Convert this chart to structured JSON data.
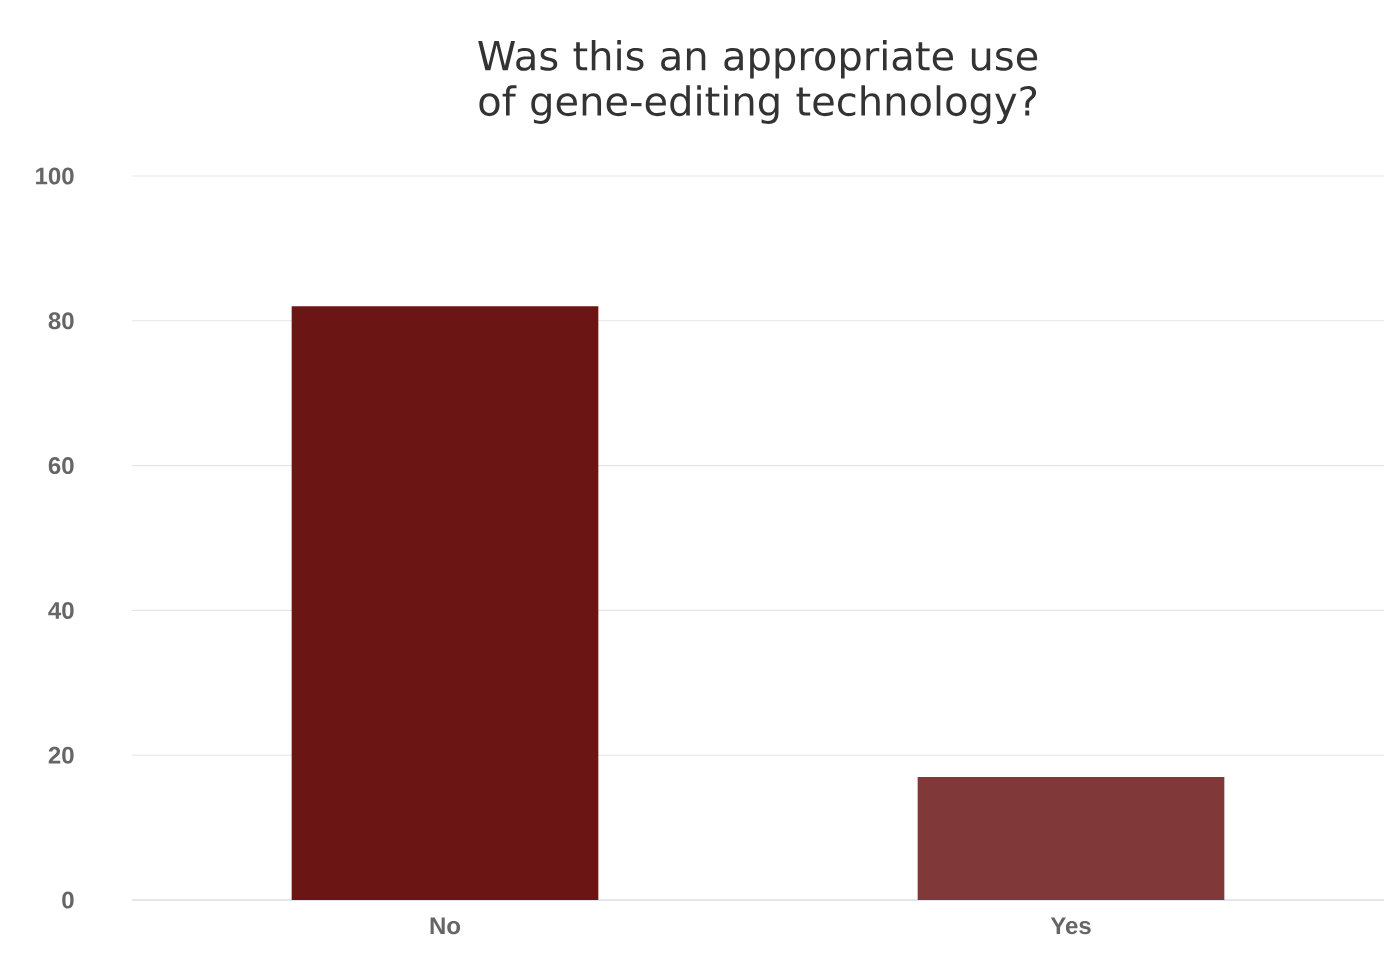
{
  "chart_data": {
    "type": "bar",
    "title": "Was this an appropriate use of gene-editing technology?",
    "categories": [
      "No",
      "Yes"
    ],
    "values": [
      82,
      17
    ],
    "colors": [
      "#6b1514",
      "#813838"
    ],
    "ylim": [
      0,
      100
    ],
    "yticks": [
      0,
      20,
      40,
      60,
      80,
      100
    ],
    "grid": "y"
  }
}
